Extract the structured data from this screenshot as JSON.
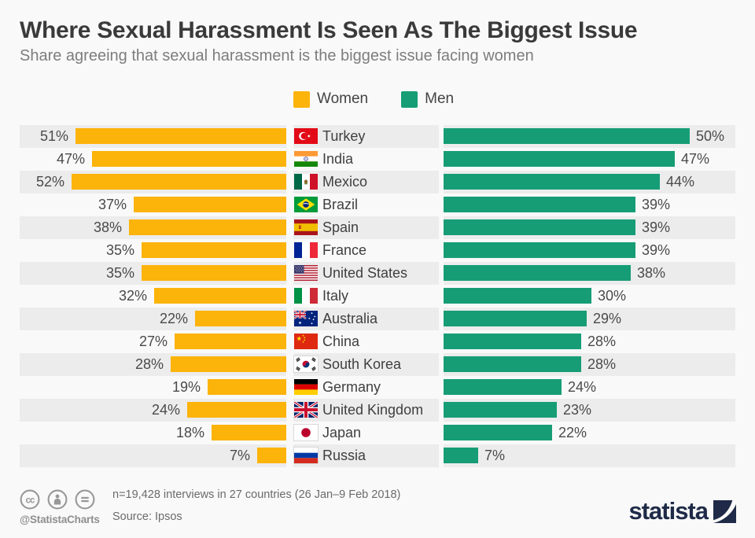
{
  "header": {
    "title": "Where Sexual Harassment Is Seen As The Biggest Issue",
    "subtitle": "Share agreeing that sexual harassment is the biggest issue facing women"
  },
  "legend": {
    "women": {
      "label": "Women"
    },
    "men": {
      "label": "Men"
    }
  },
  "chart_data": {
    "type": "bar",
    "orientation": "bidirectional-horizontal",
    "title": "Where Sexual Harassment Is Seen As The Biggest Issue",
    "subtitle": "Share agreeing that sexual harassment is the biggest issue facing women",
    "unit": "%",
    "value_label_format": "{value}%",
    "legend_position": "top-center",
    "grid": false,
    "categories": [
      "Turkey",
      "India",
      "Mexico",
      "Brazil",
      "Spain",
      "France",
      "United States",
      "Italy",
      "Australia",
      "China",
      "South Korea",
      "Germany",
      "United Kingdom",
      "Japan",
      "Russia"
    ],
    "flags": [
      "tr",
      "in",
      "mx",
      "br",
      "es",
      "fr",
      "us",
      "it",
      "au",
      "cn",
      "kr",
      "de",
      "gb",
      "jp",
      "ru"
    ],
    "series": [
      {
        "name": "Women",
        "side": "left",
        "color": "#fcb30a",
        "values": [
          51,
          47,
          52,
          37,
          38,
          35,
          35,
          32,
          22,
          27,
          28,
          19,
          24,
          18,
          7
        ],
        "axis_max": 52
      },
      {
        "name": "Men",
        "side": "right",
        "color": "#169d76",
        "values": [
          50,
          47,
          44,
          39,
          39,
          39,
          38,
          30,
          29,
          28,
          28,
          24,
          23,
          22,
          7
        ],
        "axis_max": 50
      }
    ]
  },
  "footer": {
    "cc_icons": [
      "cc",
      "attribution-person",
      "equal"
    ],
    "handle": "@StatistaCharts",
    "note": "n=19,428 interviews in 27 countries (26 Jan–9 Feb 2018)",
    "source": "Source: Ipsos",
    "brand": "statista"
  },
  "colors": {
    "women": "#fcb30a",
    "men": "#169d76",
    "stripe": "#ececec",
    "background": "#f9f9f9",
    "title": "#3a3a3a",
    "subtitle": "#7d7d7d",
    "label": "#4a4a4a",
    "footer_text": "#6b6b6b",
    "brand_navy": "#1e2a47",
    "icon_gray": "#989898"
  }
}
